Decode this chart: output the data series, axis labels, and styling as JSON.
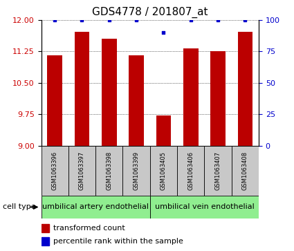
{
  "title": "GDS4778 / 201807_at",
  "samples": [
    "GSM1063396",
    "GSM1063397",
    "GSM1063398",
    "GSM1063399",
    "GSM1063405",
    "GSM1063406",
    "GSM1063407",
    "GSM1063408"
  ],
  "bar_values": [
    11.15,
    11.72,
    11.55,
    11.15,
    9.72,
    11.32,
    11.25,
    11.72
  ],
  "percentile_values": [
    100,
    100,
    100,
    100,
    90,
    100,
    100,
    100
  ],
  "ylim_left": [
    9,
    12
  ],
  "ylim_right": [
    0,
    100
  ],
  "yticks_left": [
    9,
    9.75,
    10.5,
    11.25,
    12
  ],
  "yticks_right": [
    0,
    25,
    50,
    75,
    100
  ],
  "bar_color": "#BB0000",
  "dot_color": "#0000CC",
  "cell_types": [
    {
      "label": "umbilical artery endothelial",
      "start": 0,
      "end": 3
    },
    {
      "label": "umbilical vein endothelial",
      "start": 4,
      "end": 7
    }
  ],
  "cell_type_label": "cell type",
  "legend_bar_label": "transformed count",
  "legend_dot_label": "percentile rank within the sample",
  "sample_box_color": "#C8C8C8",
  "cell_type_box_color": "#90EE90",
  "title_fontsize": 11,
  "tick_fontsize": 8,
  "sample_fontsize": 6,
  "cell_type_fontsize": 8,
  "legend_fontsize": 8
}
